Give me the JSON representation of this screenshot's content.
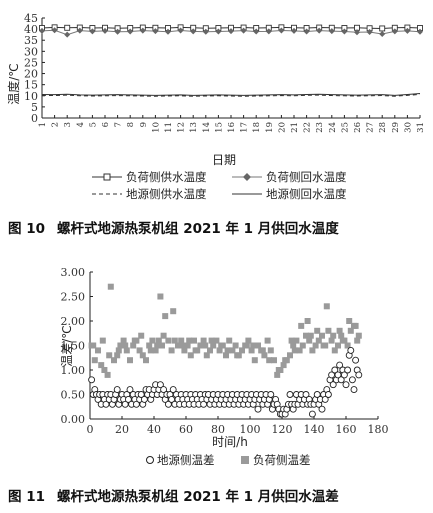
{
  "figures": [
    {
      "caption_num": "图 10",
      "caption_text": "螺杆式地源热泵机组 2021 年 1 月供回水温度",
      "ylabel": "温度/℃",
      "xlabel": "日期",
      "legend": [
        "负荷侧供水温度",
        "负荷侧回水温度",
        "地源侧供水温度",
        "地源侧回水温度"
      ]
    },
    {
      "caption_num": "图 11",
      "caption_text": "螺杆式地源热泵机组 2021 年 1 月供回水温差",
      "ylabel": "温差/℃",
      "xlabel": "时间/h",
      "legend": [
        "地源侧温差",
        "负荷侧温差"
      ]
    }
  ],
  "chart_data": [
    {
      "type": "line",
      "xlabel": "日期",
      "ylabel": "温度/℃",
      "xlim": [
        1,
        31
      ],
      "ylim": [
        0,
        45
      ],
      "yticks": [
        0,
        5,
        10,
        15,
        20,
        25,
        30,
        35,
        40,
        45
      ],
      "xticks": [
        "1",
        "2",
        "3",
        "4",
        "5",
        "6",
        "7",
        "8",
        "9",
        "10",
        "11",
        "12",
        "13",
        "14",
        "15",
        "16",
        "17",
        "18",
        "19",
        "20",
        "21",
        "22",
        "23",
        "24",
        "25",
        "26",
        "27",
        "28",
        "29",
        "30",
        "31"
      ],
      "legend_position": "bottom",
      "series": [
        {
          "name": "负荷侧供水温度",
          "style": "solid-square-marker",
          "x": [
            1,
            2,
            3,
            4,
            5,
            6,
            7,
            8,
            9,
            10,
            11,
            12,
            13,
            14,
            15,
            16,
            17,
            18,
            19,
            20,
            21,
            22,
            23,
            24,
            25,
            26,
            27,
            28,
            29,
            30,
            31
          ],
          "values": [
            40.5,
            40.8,
            40.6,
            40.7,
            40.5,
            40.6,
            40.4,
            40.5,
            40.7,
            40.6,
            40.5,
            40.8,
            40.6,
            40.4,
            40.5,
            40.6,
            40.7,
            40.5,
            40.6,
            40.8,
            40.6,
            40.5,
            40.7,
            40.6,
            40.5,
            40.6,
            40.4,
            40.3,
            40.6,
            40.7,
            40.5
          ]
        },
        {
          "name": "负荷侧回水温度",
          "style": "solid-diamond-marker",
          "x": [
            1,
            2,
            3,
            4,
            5,
            6,
            7,
            8,
            9,
            10,
            11,
            12,
            13,
            14,
            15,
            16,
            17,
            18,
            19,
            20,
            21,
            22,
            23,
            24,
            25,
            26,
            27,
            28,
            29,
            30,
            31
          ],
          "values": [
            39.2,
            39.5,
            37.5,
            39.3,
            39.0,
            39.2,
            38.8,
            38.9,
            39.3,
            39.1,
            38.8,
            39.4,
            39.0,
            38.8,
            38.9,
            39.1,
            39.3,
            38.9,
            39.0,
            39.4,
            39.2,
            38.9,
            39.3,
            39.1,
            38.9,
            38.6,
            38.7,
            37.8,
            39.0,
            39.2,
            38.8
          ]
        },
        {
          "name": "地源侧供水温度",
          "style": "dashed",
          "x": [
            1,
            2,
            3,
            4,
            5,
            6,
            7,
            8,
            9,
            10,
            11,
            12,
            13,
            14,
            15,
            16,
            17,
            18,
            19,
            20,
            21,
            22,
            23,
            24,
            25,
            26,
            27,
            28,
            29,
            30,
            31
          ],
          "values": [
            10.2,
            10.1,
            10.3,
            10.0,
            9.9,
            10.0,
            10.1,
            10.0,
            9.9,
            9.8,
            9.9,
            10.0,
            9.8,
            9.9,
            10.0,
            9.9,
            9.8,
            9.9,
            10.0,
            10.1,
            10.0,
            10.2,
            10.3,
            10.1,
            10.0,
            9.9,
            10.0,
            10.1,
            9.8,
            10.2,
            10.6
          ]
        },
        {
          "name": "地源侧回水温度",
          "style": "solid",
          "x": [
            1,
            2,
            3,
            4,
            5,
            6,
            7,
            8,
            9,
            10,
            11,
            12,
            13,
            14,
            15,
            16,
            17,
            18,
            19,
            20,
            21,
            22,
            23,
            24,
            25,
            26,
            27,
            28,
            29,
            30,
            31
          ],
          "values": [
            10.6,
            10.5,
            10.7,
            10.4,
            10.3,
            10.4,
            10.5,
            10.4,
            10.3,
            10.2,
            10.3,
            10.4,
            10.2,
            10.3,
            10.4,
            10.3,
            10.2,
            10.3,
            10.4,
            10.5,
            10.4,
            10.6,
            10.7,
            10.5,
            10.4,
            10.3,
            10.4,
            10.5,
            10.2,
            10.6,
            11.0
          ]
        }
      ]
    },
    {
      "type": "scatter",
      "xlabel": "时间/h",
      "ylabel": "温差/℃",
      "xlim": [
        0,
        180
      ],
      "ylim": [
        0,
        3
      ],
      "xticks": [
        0,
        20,
        40,
        60,
        80,
        100,
        120,
        140,
        160,
        180
      ],
      "yticks": [
        0.0,
        0.5,
        1.0,
        1.5,
        2.0,
        2.5,
        3.0
      ],
      "legend_position": "bottom",
      "series": [
        {
          "name": "地源侧温差",
          "marker": "open-circle",
          "x": [
            1,
            2,
            3,
            4,
            5,
            6,
            7,
            8,
            9,
            10,
            11,
            12,
            13,
            14,
            15,
            16,
            17,
            18,
            19,
            20,
            21,
            22,
            23,
            24,
            25,
            26,
            27,
            28,
            29,
            30,
            31,
            32,
            33,
            34,
            35,
            36,
            37,
            38,
            39,
            40,
            41,
            42,
            43,
            44,
            45,
            46,
            47,
            48,
            49,
            50,
            51,
            52,
            53,
            54,
            55,
            56,
            57,
            58,
            59,
            60,
            61,
            62,
            63,
            64,
            65,
            66,
            67,
            68,
            69,
            70,
            71,
            72,
            73,
            74,
            75,
            76,
            77,
            78,
            79,
            80,
            81,
            82,
            83,
            84,
            85,
            86,
            87,
            88,
            89,
            90,
            91,
            92,
            93,
            94,
            95,
            96,
            97,
            98,
            99,
            100,
            101,
            102,
            103,
            104,
            105,
            106,
            107,
            108,
            109,
            110,
            111,
            112,
            113,
            114,
            115,
            116,
            117,
            118,
            119,
            120,
            121,
            122,
            123,
            124,
            125,
            126,
            127,
            128,
            129,
            130,
            131,
            132,
            133,
            134,
            135,
            136,
            137,
            138,
            139,
            140,
            141,
            142,
            143,
            144,
            145,
            146,
            147,
            148,
            149,
            150,
            151,
            152,
            153,
            154,
            155,
            156,
            157,
            158,
            159,
            160,
            161,
            162,
            163,
            164,
            165,
            166,
            167,
            168
          ],
          "values": [
            0.8,
            0.5,
            0.6,
            0.5,
            0.4,
            0.5,
            0.3,
            0.5,
            0.4,
            0.3,
            0.5,
            0.4,
            0.5,
            0.3,
            0.4,
            0.5,
            0.6,
            0.3,
            0.4,
            0.5,
            0.4,
            0.3,
            0.5,
            0.4,
            0.6,
            0.3,
            0.5,
            0.4,
            0.3,
            0.5,
            0.4,
            0.5,
            0.3,
            0.4,
            0.6,
            0.5,
            0.6,
            0.4,
            0.5,
            0.6,
            0.7,
            0.5,
            0.6,
            0.7,
            0.5,
            0.6,
            0.4,
            0.5,
            0.3,
            0.5,
            0.4,
            0.6,
            0.3,
            0.5,
            0.4,
            0.3,
            0.5,
            0.4,
            0.3,
            0.5,
            0.4,
            0.3,
            0.5,
            0.4,
            0.3,
            0.5,
            0.4,
            0.3,
            0.5,
            0.4,
            0.3,
            0.5,
            0.4,
            0.5,
            0.3,
            0.4,
            0.5,
            0.3,
            0.4,
            0.5,
            0.3,
            0.4,
            0.5,
            0.3,
            0.4,
            0.5,
            0.3,
            0.4,
            0.5,
            0.3,
            0.4,
            0.5,
            0.3,
            0.4,
            0.5,
            0.3,
            0.4,
            0.5,
            0.3,
            0.4,
            0.5,
            0.3,
            0.4,
            0.5,
            0.2,
            0.4,
            0.5,
            0.3,
            0.4,
            0.5,
            0.3,
            0.4,
            0.5,
            0.2,
            0.3,
            0.4,
            0.3,
            0.2,
            0.1,
            0.1,
            0.2,
            0.1,
            0.2,
            0.3,
            0.5,
            0.3,
            0.2,
            0.3,
            0.5,
            0.3,
            0.4,
            0.5,
            0.3,
            0.4,
            0.5,
            0.3,
            0.4,
            0.3,
            0.1,
            0.3,
            0.4,
            0.5,
            0.3,
            0.4,
            0.2,
            0.5,
            0.4,
            0.6,
            0.5,
            0.8,
            0.9,
            0.7,
            1.0,
            0.8,
            0.9,
            1.1,
            0.8,
            1.0,
            0.9,
            0.7,
            1.0,
            1.3,
            1.4,
            0.8,
            0.6,
            1.2,
            1.0,
            0.9
          ]
        },
        {
          "name": "负荷侧温差",
          "marker": "filled-square",
          "x": [
            1,
            3,
            5,
            7,
            9,
            11,
            13,
            15,
            17,
            19,
            21,
            23,
            25,
            27,
            29,
            31,
            33,
            35,
            37,
            39,
            41,
            43,
            45,
            47,
            49,
            51,
            53,
            55,
            57,
            59,
            61,
            63,
            65,
            67,
            69,
            71,
            73,
            75,
            77,
            79,
            81,
            83,
            85,
            87,
            89,
            91,
            93,
            95,
            97,
            99,
            101,
            103,
            105,
            107,
            109,
            111,
            113,
            115,
            117,
            119,
            121,
            123,
            125,
            127,
            129,
            131,
            133,
            135,
            137,
            139,
            141,
            143,
            145,
            147,
            149,
            151,
            153,
            155,
            157,
            159,
            161,
            163,
            165,
            167,
            2,
            8,
            12,
            18,
            22,
            28,
            32,
            38,
            42,
            44,
            46,
            52,
            58,
            62,
            66,
            72,
            76,
            82,
            86,
            92,
            98,
            102,
            108,
            112,
            118,
            122,
            126,
            128,
            132,
            136,
            138,
            142,
            146,
            148,
            152,
            156,
            158,
            162,
            166,
            168
          ],
          "values": [
            1.5,
            1.2,
            1.4,
            1.1,
            1.0,
            0.9,
            2.7,
            1.2,
            1.3,
            1.5,
            1.6,
            1.4,
            1.2,
            1.5,
            1.6,
            1.4,
            1.3,
            1.2,
            1.5,
            1.6,
            1.4,
            1.6,
            1.5,
            2.1,
            1.6,
            1.4,
            1.6,
            1.5,
            1.6,
            1.4,
            1.5,
            1.3,
            1.6,
            1.4,
            1.5,
            1.6,
            1.3,
            1.4,
            1.5,
            1.6,
            1.4,
            1.5,
            1.3,
            1.6,
            1.4,
            1.5,
            1.3,
            1.4,
            1.5,
            1.6,
            1.4,
            1.2,
            1.5,
            1.4,
            1.3,
            1.6,
            1.4,
            1.2,
            0.9,
            1.0,
            1.1,
            1.2,
            1.3,
            1.5,
            1.6,
            1.4,
            1.5,
            1.7,
            1.6,
            1.4,
            1.5,
            1.6,
            1.7,
            1.5,
            1.8,
            1.6,
            1.4,
            1.5,
            1.7,
            1.6,
            1.5,
            1.8,
            1.9,
            1.6,
            1.5,
            1.6,
            1.3,
            1.4,
            1.5,
            1.6,
            1.7,
            1.4,
            1.5,
            2.5,
            1.7,
            2.2,
            1.5,
            1.6,
            1.4,
            1.5,
            1.6,
            1.5,
            1.4,
            1.3,
            1.5,
            1.5,
            1.4,
            1.2,
            1.0,
            1.2,
            1.6,
            1.4,
            1.9,
            2.0,
            1.7,
            1.8,
            1.5,
            2.3,
            1.7,
            1.8,
            1.6,
            2.0,
            1.9,
            1.7
          ]
        }
      ]
    }
  ]
}
